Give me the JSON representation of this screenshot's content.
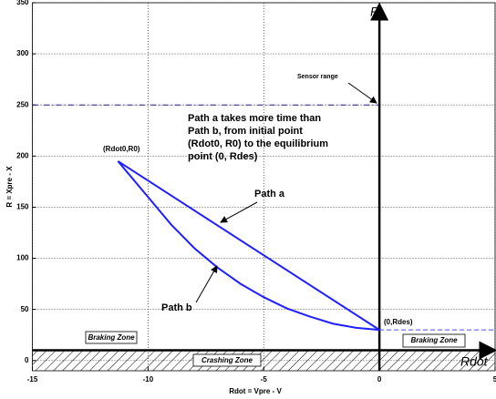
{
  "chart_data": {
    "type": "line",
    "xlabel": "Rdot  = Vpre - V",
    "ylabel": "R = Xpre - X",
    "x_axis_name": "Rdot",
    "y_axis_name": "R",
    "xlim": [
      -15,
      5
    ],
    "ylim": [
      -10,
      350
    ],
    "xticks": [
      -15,
      -10,
      -5,
      0,
      5
    ],
    "yticks": [
      0,
      50,
      100,
      150,
      200,
      250,
      300,
      350
    ],
    "grid": true,
    "series": [
      {
        "name": "Path a",
        "color": "#1f1fff",
        "x": [
          -11.3,
          0
        ],
        "values": [
          195,
          30
        ]
      },
      {
        "name": "Path b",
        "color": "#1f1fff",
        "x": [
          -11.3,
          -10,
          -9,
          -8,
          -7,
          -6,
          -5,
          -4,
          -3,
          -2,
          -1,
          0
        ],
        "values": [
          195,
          160,
          133,
          110,
          91,
          75,
          62,
          51,
          43,
          36,
          32,
          30
        ]
      }
    ],
    "hlines": [
      {
        "value": 250,
        "from": -15,
        "to": 0,
        "color": "#1a1a7a",
        "style": "dashdot"
      },
      {
        "value": 30,
        "from": 0,
        "to": 5,
        "color": "#4a4aff",
        "style": "dashed"
      },
      {
        "value": 10,
        "from": -15,
        "to": 5,
        "color": "#000000",
        "style": "solid"
      }
    ],
    "annotations": {
      "sensor": "Sensor range",
      "start": "(Rdot0,R0)",
      "end": "(0,Rdes)",
      "note": [
        "Path a takes more time than",
        "Path b, from initial point",
        "(Rdot0, R0) to the equilibrium",
        "point (0, Rdes)"
      ],
      "braking_left": "Braking Zone",
      "braking_right": "Braking Zone",
      "crashing": "Crashing Zone"
    }
  }
}
